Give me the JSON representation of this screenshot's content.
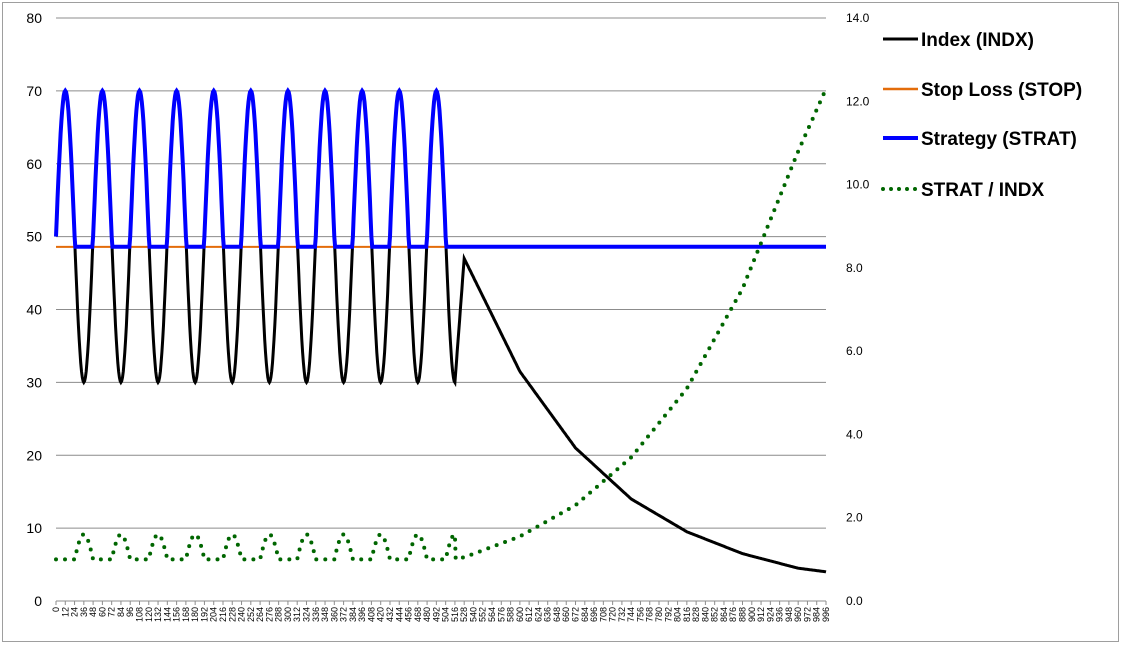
{
  "chart_data": {
    "type": "line",
    "title": "",
    "xlabel": "",
    "ylabel": "",
    "y2label": "",
    "xlim": [
      0,
      996
    ],
    "x_tick_step": 12,
    "ylim": [
      0,
      80
    ],
    "y_ticks": [
      "0",
      "10",
      "20",
      "30",
      "40",
      "50",
      "60",
      "70",
      "80"
    ],
    "y2lim": [
      0,
      14
    ],
    "y2_ticks": [
      "0.0",
      "2.0",
      "4.0",
      "6.0",
      "8.0",
      "10.0",
      "12.0",
      "14.0"
    ],
    "grid": "horizontal",
    "legend_position": "right",
    "stop_level": 48.6,
    "series": [
      {
        "name": "Index (INDX)",
        "axis": "left",
        "color": "#000000",
        "style": "solid",
        "description_points": [
          [
            0,
            50
          ],
          [
            12,
            70
          ],
          [
            24,
            50
          ],
          [
            36,
            30
          ],
          [
            48,
            50
          ],
          [
            60,
            70
          ],
          [
            72,
            50
          ],
          [
            84,
            30
          ],
          [
            96,
            50
          ],
          [
            108,
            70
          ],
          [
            120,
            50
          ],
          [
            132,
            30
          ],
          [
            144,
            50
          ],
          [
            156,
            70
          ],
          [
            168,
            50
          ],
          [
            180,
            30
          ],
          [
            192,
            50
          ],
          [
            204,
            70
          ],
          [
            216,
            50
          ],
          [
            228,
            30
          ],
          [
            240,
            50
          ],
          [
            252,
            70
          ],
          [
            264,
            50
          ],
          [
            276,
            30
          ],
          [
            288,
            50
          ],
          [
            300,
            70
          ],
          [
            312,
            50
          ],
          [
            324,
            30
          ],
          [
            336,
            50
          ],
          [
            348,
            70
          ],
          [
            360,
            50
          ],
          [
            372,
            30
          ],
          [
            384,
            50
          ],
          [
            396,
            70
          ],
          [
            408,
            50
          ],
          [
            420,
            30
          ],
          [
            432,
            50
          ],
          [
            444,
            70
          ],
          [
            456,
            50
          ],
          [
            468,
            30
          ],
          [
            480,
            50
          ],
          [
            492,
            70
          ],
          [
            504,
            50
          ],
          [
            516,
            30
          ],
          [
            528,
            47
          ],
          [
            600,
            31.5
          ],
          [
            672,
            21
          ],
          [
            744,
            14
          ],
          [
            816,
            9.5
          ],
          [
            888,
            6.5
          ],
          [
            960,
            4.5
          ],
          [
            996,
            4
          ]
        ]
      },
      {
        "name": "Stop Loss (STOP)",
        "axis": "left",
        "color": "#E36C0A",
        "style": "solid",
        "description_points": [
          [
            0,
            48.6
          ],
          [
            996,
            48.6
          ]
        ]
      },
      {
        "name": "Strategy (STRAT)",
        "axis": "left",
        "color": "#0000FF",
        "style": "solid-thick"
      },
      {
        "name": "STRAT / INDX",
        "axis": "right",
        "color": "#006600",
        "style": "dotted",
        "description_points": [
          [
            0,
            1.0
          ],
          [
            12,
            1.0
          ],
          [
            24,
            1.6
          ],
          [
            36,
            1.0
          ],
          [
            48,
            1.0
          ],
          [
            516,
            1.0
          ],
          [
            528,
            1.05
          ],
          [
            600,
            1.55
          ],
          [
            672,
            2.3
          ],
          [
            744,
            3.45
          ],
          [
            816,
            5.1
          ],
          [
            888,
            7.5
          ],
          [
            960,
            10.8
          ],
          [
            996,
            12.3
          ]
        ]
      }
    ]
  }
}
